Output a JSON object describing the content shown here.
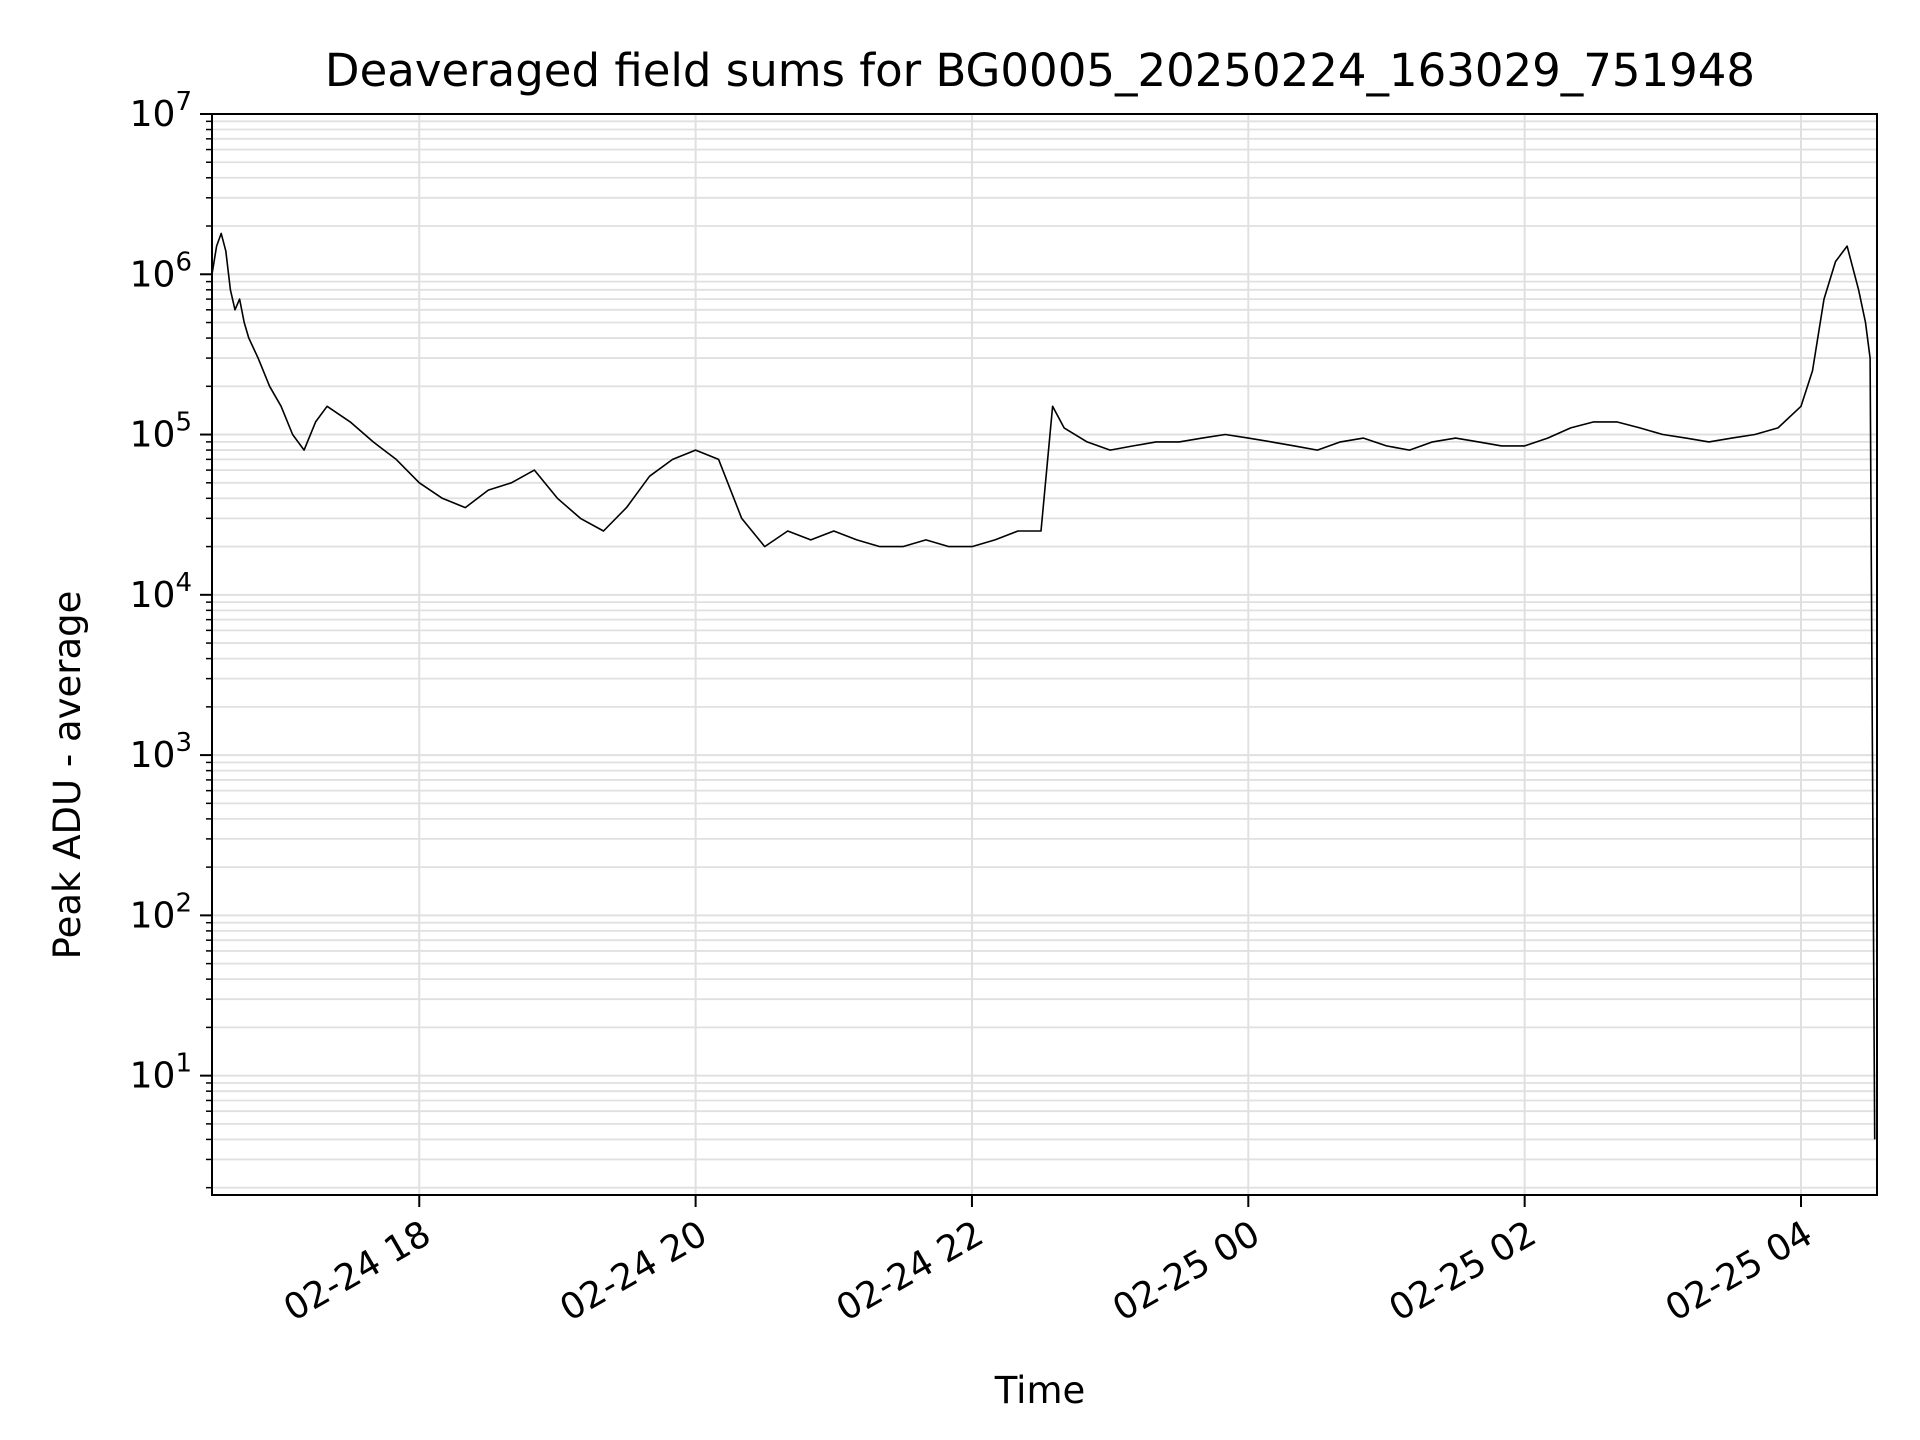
{
  "chart_data": {
    "type": "line",
    "title": "Deaveraged field sums for BG0005_20250224_163029_751948",
    "xlabel": "Time",
    "ylabel": "Peak ADU - average",
    "yscale": "log",
    "ylim": [
      1.8,
      10000000
    ],
    "xlim": [
      "2025-02-24 16:30",
      "2025-02-25 04:33"
    ],
    "grid": true,
    "line_color": "#000000",
    "grid_color": "#e0e0e0",
    "x_ticks": [
      {
        "value": "2025-02-24 18:00",
        "label": "02-24 18"
      },
      {
        "value": "2025-02-24 20:00",
        "label": "02-24 20"
      },
      {
        "value": "2025-02-24 22:00",
        "label": "02-24 22"
      },
      {
        "value": "2025-02-25 00:00",
        "label": "02-25 00"
      },
      {
        "value": "2025-02-25 02:00",
        "label": "02-25 02"
      },
      {
        "value": "2025-02-25 04:00",
        "label": "02-25 04"
      }
    ],
    "y_ticks": [
      {
        "value": 10,
        "base": "10",
        "exp": "1"
      },
      {
        "value": 100,
        "base": "10",
        "exp": "2"
      },
      {
        "value": 1000,
        "base": "10",
        "exp": "3"
      },
      {
        "value": 10000,
        "base": "10",
        "exp": "4"
      },
      {
        "value": 100000,
        "base": "10",
        "exp": "5"
      },
      {
        "value": 1000000,
        "base": "10",
        "exp": "6"
      },
      {
        "value": 10000000,
        "base": "10",
        "exp": "7"
      }
    ],
    "series": [
      {
        "x": [
          "2025-02-24 16:30",
          "2025-02-24 16:32",
          "2025-02-24 16:34",
          "2025-02-24 16:36",
          "2025-02-24 16:38",
          "2025-02-24 16:40",
          "2025-02-24 16:42",
          "2025-02-24 16:44",
          "2025-02-24 16:46",
          "2025-02-24 16:50",
          "2025-02-24 16:55",
          "2025-02-24 17:00",
          "2025-02-24 17:05",
          "2025-02-24 17:10",
          "2025-02-24 17:15",
          "2025-02-24 17:20",
          "2025-02-24 17:30",
          "2025-02-24 17:40",
          "2025-02-24 17:50",
          "2025-02-24 18:00",
          "2025-02-24 18:10",
          "2025-02-24 18:20",
          "2025-02-24 18:30",
          "2025-02-24 18:40",
          "2025-02-24 18:50",
          "2025-02-24 19:00",
          "2025-02-24 19:10",
          "2025-02-24 19:20",
          "2025-02-24 19:30",
          "2025-02-24 19:40",
          "2025-02-24 19:50",
          "2025-02-24 20:00",
          "2025-02-24 20:10",
          "2025-02-24 20:20",
          "2025-02-24 20:30",
          "2025-02-24 20:40",
          "2025-02-24 20:50",
          "2025-02-24 21:00",
          "2025-02-24 21:10",
          "2025-02-24 21:20",
          "2025-02-24 21:30",
          "2025-02-24 21:40",
          "2025-02-24 21:50",
          "2025-02-24 22:00",
          "2025-02-24 22:10",
          "2025-02-24 22:20",
          "2025-02-24 22:30",
          "2025-02-24 22:35",
          "2025-02-24 22:40",
          "2025-02-24 22:50",
          "2025-02-24 23:00",
          "2025-02-24 23:10",
          "2025-02-24 23:20",
          "2025-02-24 23:30",
          "2025-02-24 23:40",
          "2025-02-24 23:50",
          "2025-02-25 00:00",
          "2025-02-25 00:10",
          "2025-02-25 00:20",
          "2025-02-25 00:30",
          "2025-02-25 00:40",
          "2025-02-25 00:50",
          "2025-02-25 01:00",
          "2025-02-25 01:10",
          "2025-02-25 01:20",
          "2025-02-25 01:30",
          "2025-02-25 01:40",
          "2025-02-25 01:50",
          "2025-02-25 02:00",
          "2025-02-25 02:10",
          "2025-02-25 02:20",
          "2025-02-25 02:30",
          "2025-02-25 02:40",
          "2025-02-25 02:50",
          "2025-02-25 03:00",
          "2025-02-25 03:10",
          "2025-02-25 03:20",
          "2025-02-25 03:30",
          "2025-02-25 03:40",
          "2025-02-25 03:50",
          "2025-02-25 04:00",
          "2025-02-25 04:05",
          "2025-02-25 04:10",
          "2025-02-25 04:15",
          "2025-02-25 04:20",
          "2025-02-25 04:25",
          "2025-02-25 04:28",
          "2025-02-25 04:30",
          "2025-02-25 04:32"
        ],
        "y": [
          1000000,
          1500000,
          1800000,
          1400000,
          800000,
          600000,
          700000,
          500000,
          400000,
          300000,
          200000,
          150000,
          100000,
          80000,
          120000,
          150000,
          120000,
          90000,
          70000,
          50000,
          40000,
          35000,
          45000,
          50000,
          60000,
          40000,
          30000,
          25000,
          35000,
          55000,
          70000,
          80000,
          70000,
          30000,
          20000,
          25000,
          22000,
          25000,
          22000,
          20000,
          20000,
          22000,
          20000,
          20000,
          22000,
          25000,
          25000,
          150000,
          110000,
          90000,
          80000,
          85000,
          90000,
          90000,
          95000,
          100000,
          95000,
          90000,
          85000,
          80000,
          90000,
          95000,
          85000,
          80000,
          90000,
          95000,
          90000,
          85000,
          85000,
          95000,
          110000,
          120000,
          120000,
          110000,
          100000,
          95000,
          90000,
          95000,
          100000,
          110000,
          150000,
          250000,
          700000,
          1200000,
          1500000,
          800000,
          500000,
          300000,
          4
        ]
      }
    ]
  }
}
